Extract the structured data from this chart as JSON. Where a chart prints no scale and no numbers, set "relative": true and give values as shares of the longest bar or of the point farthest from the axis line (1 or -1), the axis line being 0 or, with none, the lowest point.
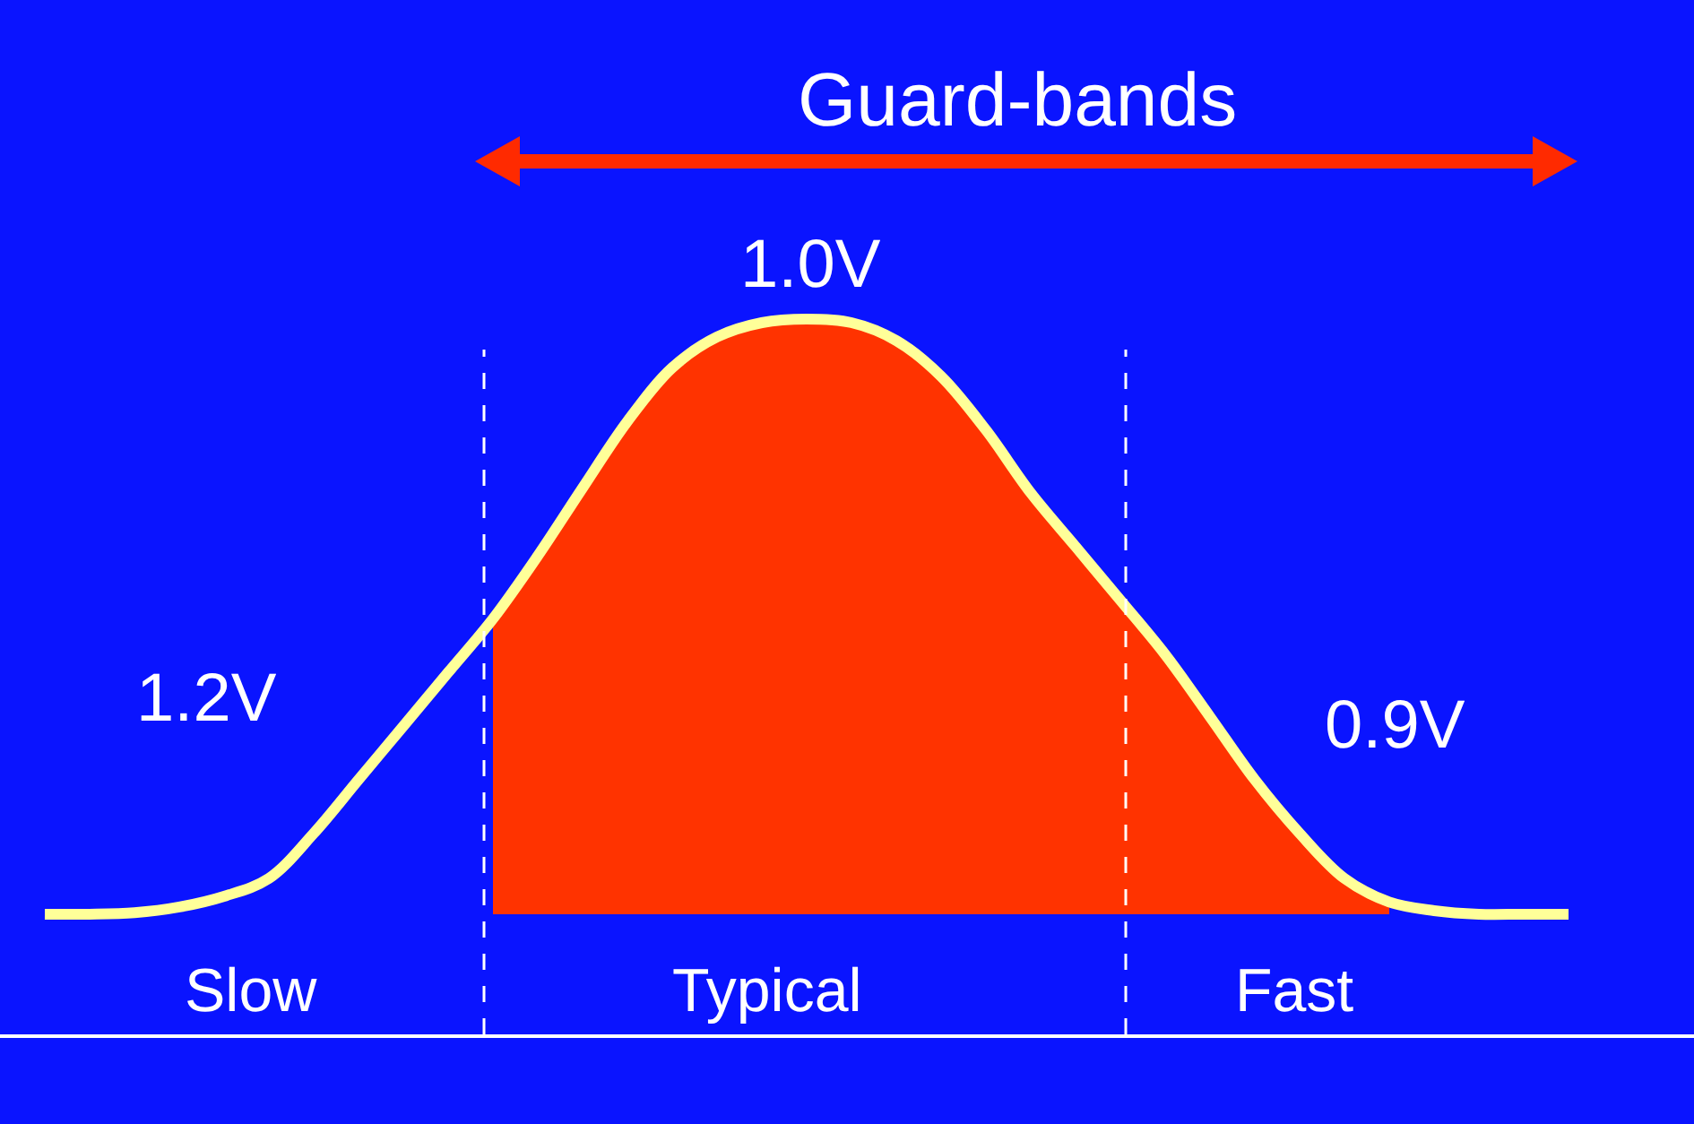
{
  "chart_data": {
    "type": "line",
    "relative": true,
    "categories": [
      null,
      null,
      null,
      null,
      null,
      null,
      null,
      null,
      null,
      null,
      null,
      null,
      null,
      null,
      null,
      null,
      null,
      null,
      null,
      null,
      null,
      null,
      null,
      null,
      null,
      null,
      null,
      null,
      null,
      null,
      null,
      null,
      null,
      null,
      null
    ],
    "series": [
      {
        "color": "#ffff99",
        "values": [
          0.168,
          0.168,
          0.17,
          0.178,
          0.193,
          0.218,
          0.281,
          0.356,
          0.431,
          0.506,
          0.581,
          0.669,
          0.764,
          0.857,
          0.932,
          0.975,
          0.995,
          1,
          0.995,
          0.97,
          0.92,
          0.845,
          0.757,
          0.682,
          0.607,
          0.531,
          0.444,
          0.356,
          0.281,
          0.218,
          0.185,
          0.173,
          0.168,
          0.168,
          0.168
        ]
      },
      {
        "type": "area",
        "color": "#ff3300",
        "values": [
          null,
          null,
          null,
          null,
          null,
          null,
          null,
          null,
          null,
          null,
          0.581,
          0.669,
          0.764,
          0.857,
          0.932,
          0.975,
          0.995,
          1,
          0.995,
          0.97,
          0.92,
          0.845,
          0.757,
          0.682,
          0.607,
          0.531,
          0.444,
          0.356,
          0.281,
          0.218,
          0.185,
          null,
          null,
          null,
          null
        ]
      }
    ],
    "annotations": [
      "Guard-bands",
      "1.0V",
      "1.2V",
      "0.9V",
      "Slow",
      "Typical",
      "Fast"
    ]
  }
}
